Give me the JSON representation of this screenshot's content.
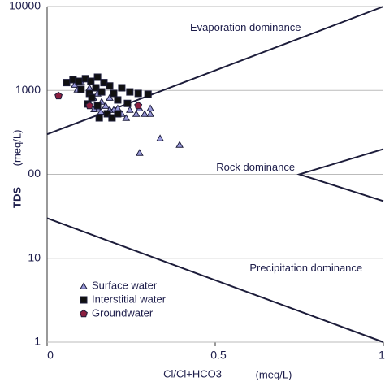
{
  "chart_data": {
    "type": "scatter",
    "x_label": "Cl/Cl+HCO3",
    "x_unit": "(meq/L)",
    "y_label": "TDS",
    "y_unit": "(meq/L)",
    "xlim": [
      0,
      1
    ],
    "xticks": [
      0,
      0.5,
      1
    ],
    "ylim": [
      1,
      10000
    ],
    "yscale": "log",
    "yticks": [
      1,
      10,
      {
        "value": 100,
        "label": "00"
      },
      1000,
      10000
    ],
    "grid": true,
    "legend": "lower left",
    "annotations": [
      {
        "text": "Evaporation dominance",
        "x": 0.59,
        "y": 5500
      },
      {
        "text": "Rock dominance",
        "x": 0.62,
        "y": 120
      },
      {
        "text": "Precipitation dominance",
        "x": 0.77,
        "y": 7.5
      }
    ],
    "lines": [
      {
        "x": [
          0,
          1
        ],
        "y": [
          300,
          10000
        ]
      },
      {
        "x": [
          1,
          0.75,
          1
        ],
        "y": [
          200,
          100,
          48
        ]
      },
      {
        "x": [
          0,
          1
        ],
        "y": [
          30,
          1
        ]
      }
    ],
    "series": [
      {
        "name": "Surface water",
        "color": "#9b9bdc",
        "marker": "triangle",
        "x": [
          0.082,
          0.101,
          0.09,
          0.126,
          0.15,
          0.138,
          0.162,
          0.174,
          0.186,
          0.198,
          0.222,
          0.235,
          0.15,
          0.186,
          0.21,
          0.246,
          0.265,
          0.275,
          0.29,
          0.307,
          0.307,
          0.275,
          0.336,
          0.394,
          0.14,
          0.16
        ],
        "values": [
          1175,
          1285,
          1030,
          1075,
          921,
          822,
          736,
          658,
          822,
          589,
          527,
          471,
          615,
          589,
          615,
          589,
          527,
          615,
          527,
          527,
          615,
          181,
          270,
          226,
          600,
          560
        ]
      },
      {
        "name": "Interstitial water",
        "color": "#111111",
        "marker": "square",
        "x": [
          0.058,
          0.077,
          0.094,
          0.114,
          0.13,
          0.15,
          0.169,
          0.186,
          0.101,
          0.126,
          0.145,
          0.162,
          0.198,
          0.222,
          0.246,
          0.271,
          0.3,
          0.21,
          0.239,
          0.179,
          0.193,
          0.15,
          0.121,
          0.133,
          0.21,
          0.155
        ],
        "values": [
          1240,
          1343,
          1285,
          1380,
          1285,
          1437,
          1240,
          1130,
          1030,
          921,
          1075,
          960,
          921,
          1075,
          960,
          921,
          900,
          770,
          700,
          527,
          471,
          658,
          690,
          822,
          527,
          471
        ]
      },
      {
        "name": "Groundwater",
        "color": "#8b1f3f",
        "marker": "pentagon",
        "x": [
          0.034,
          0.126,
          0.271
        ],
        "values": [
          861,
          658,
          658
        ]
      }
    ]
  }
}
